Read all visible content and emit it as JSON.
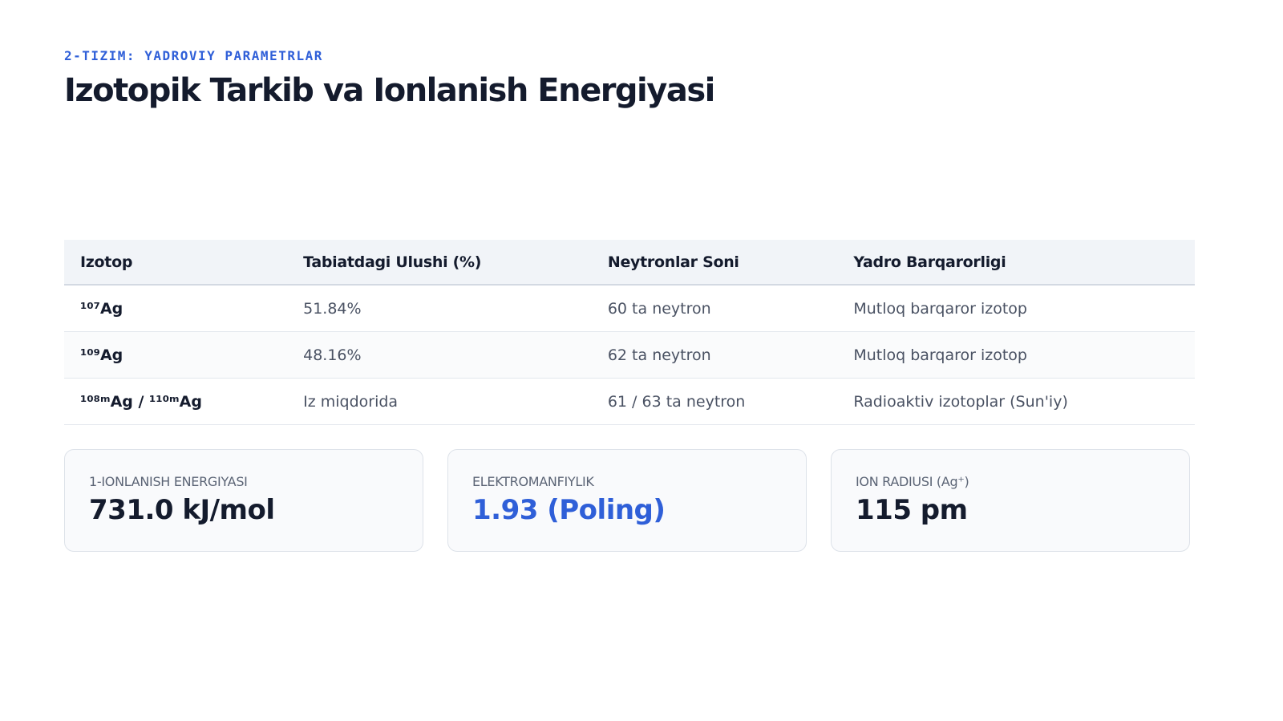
{
  "header": {
    "kicker": "2-TIZIM: YADROVIY PARAMETRLAR",
    "title": "Izotopik Tarkib va Ionlanish Energiyasi"
  },
  "table": {
    "headers": [
      "Izotop",
      "Tabiatdagi Ulushi (%)",
      "Neytronlar Soni",
      "Yadro Barqarorligi"
    ],
    "rows": [
      [
        "¹⁰⁷Ag",
        "51.84%",
        "60 ta neytron",
        "Mutloq barqaror izotop"
      ],
      [
        "¹⁰⁹Ag",
        "48.16%",
        "62 ta neytron",
        "Mutloq barqaror izotop"
      ],
      [
        "¹⁰⁸ᵐAg / ¹¹⁰ᵐAg",
        "Iz miqdorida",
        "61 / 63 ta neytron",
        "Radioaktiv izotoplar (Sun'iy)"
      ]
    ]
  },
  "cards": [
    {
      "label": "1-IONLANISH ENERGIYASI",
      "value": "731.0 kJ/mol",
      "color": "#141b2d"
    },
    {
      "label": "ELEKTROMANFIYLIK",
      "value": "1.93 (Poling)",
      "color": "#2f5fd8"
    },
    {
      "label": "ION RADIUSI (Ag⁺)",
      "value": "115 pm",
      "color": "#141b2d"
    }
  ]
}
